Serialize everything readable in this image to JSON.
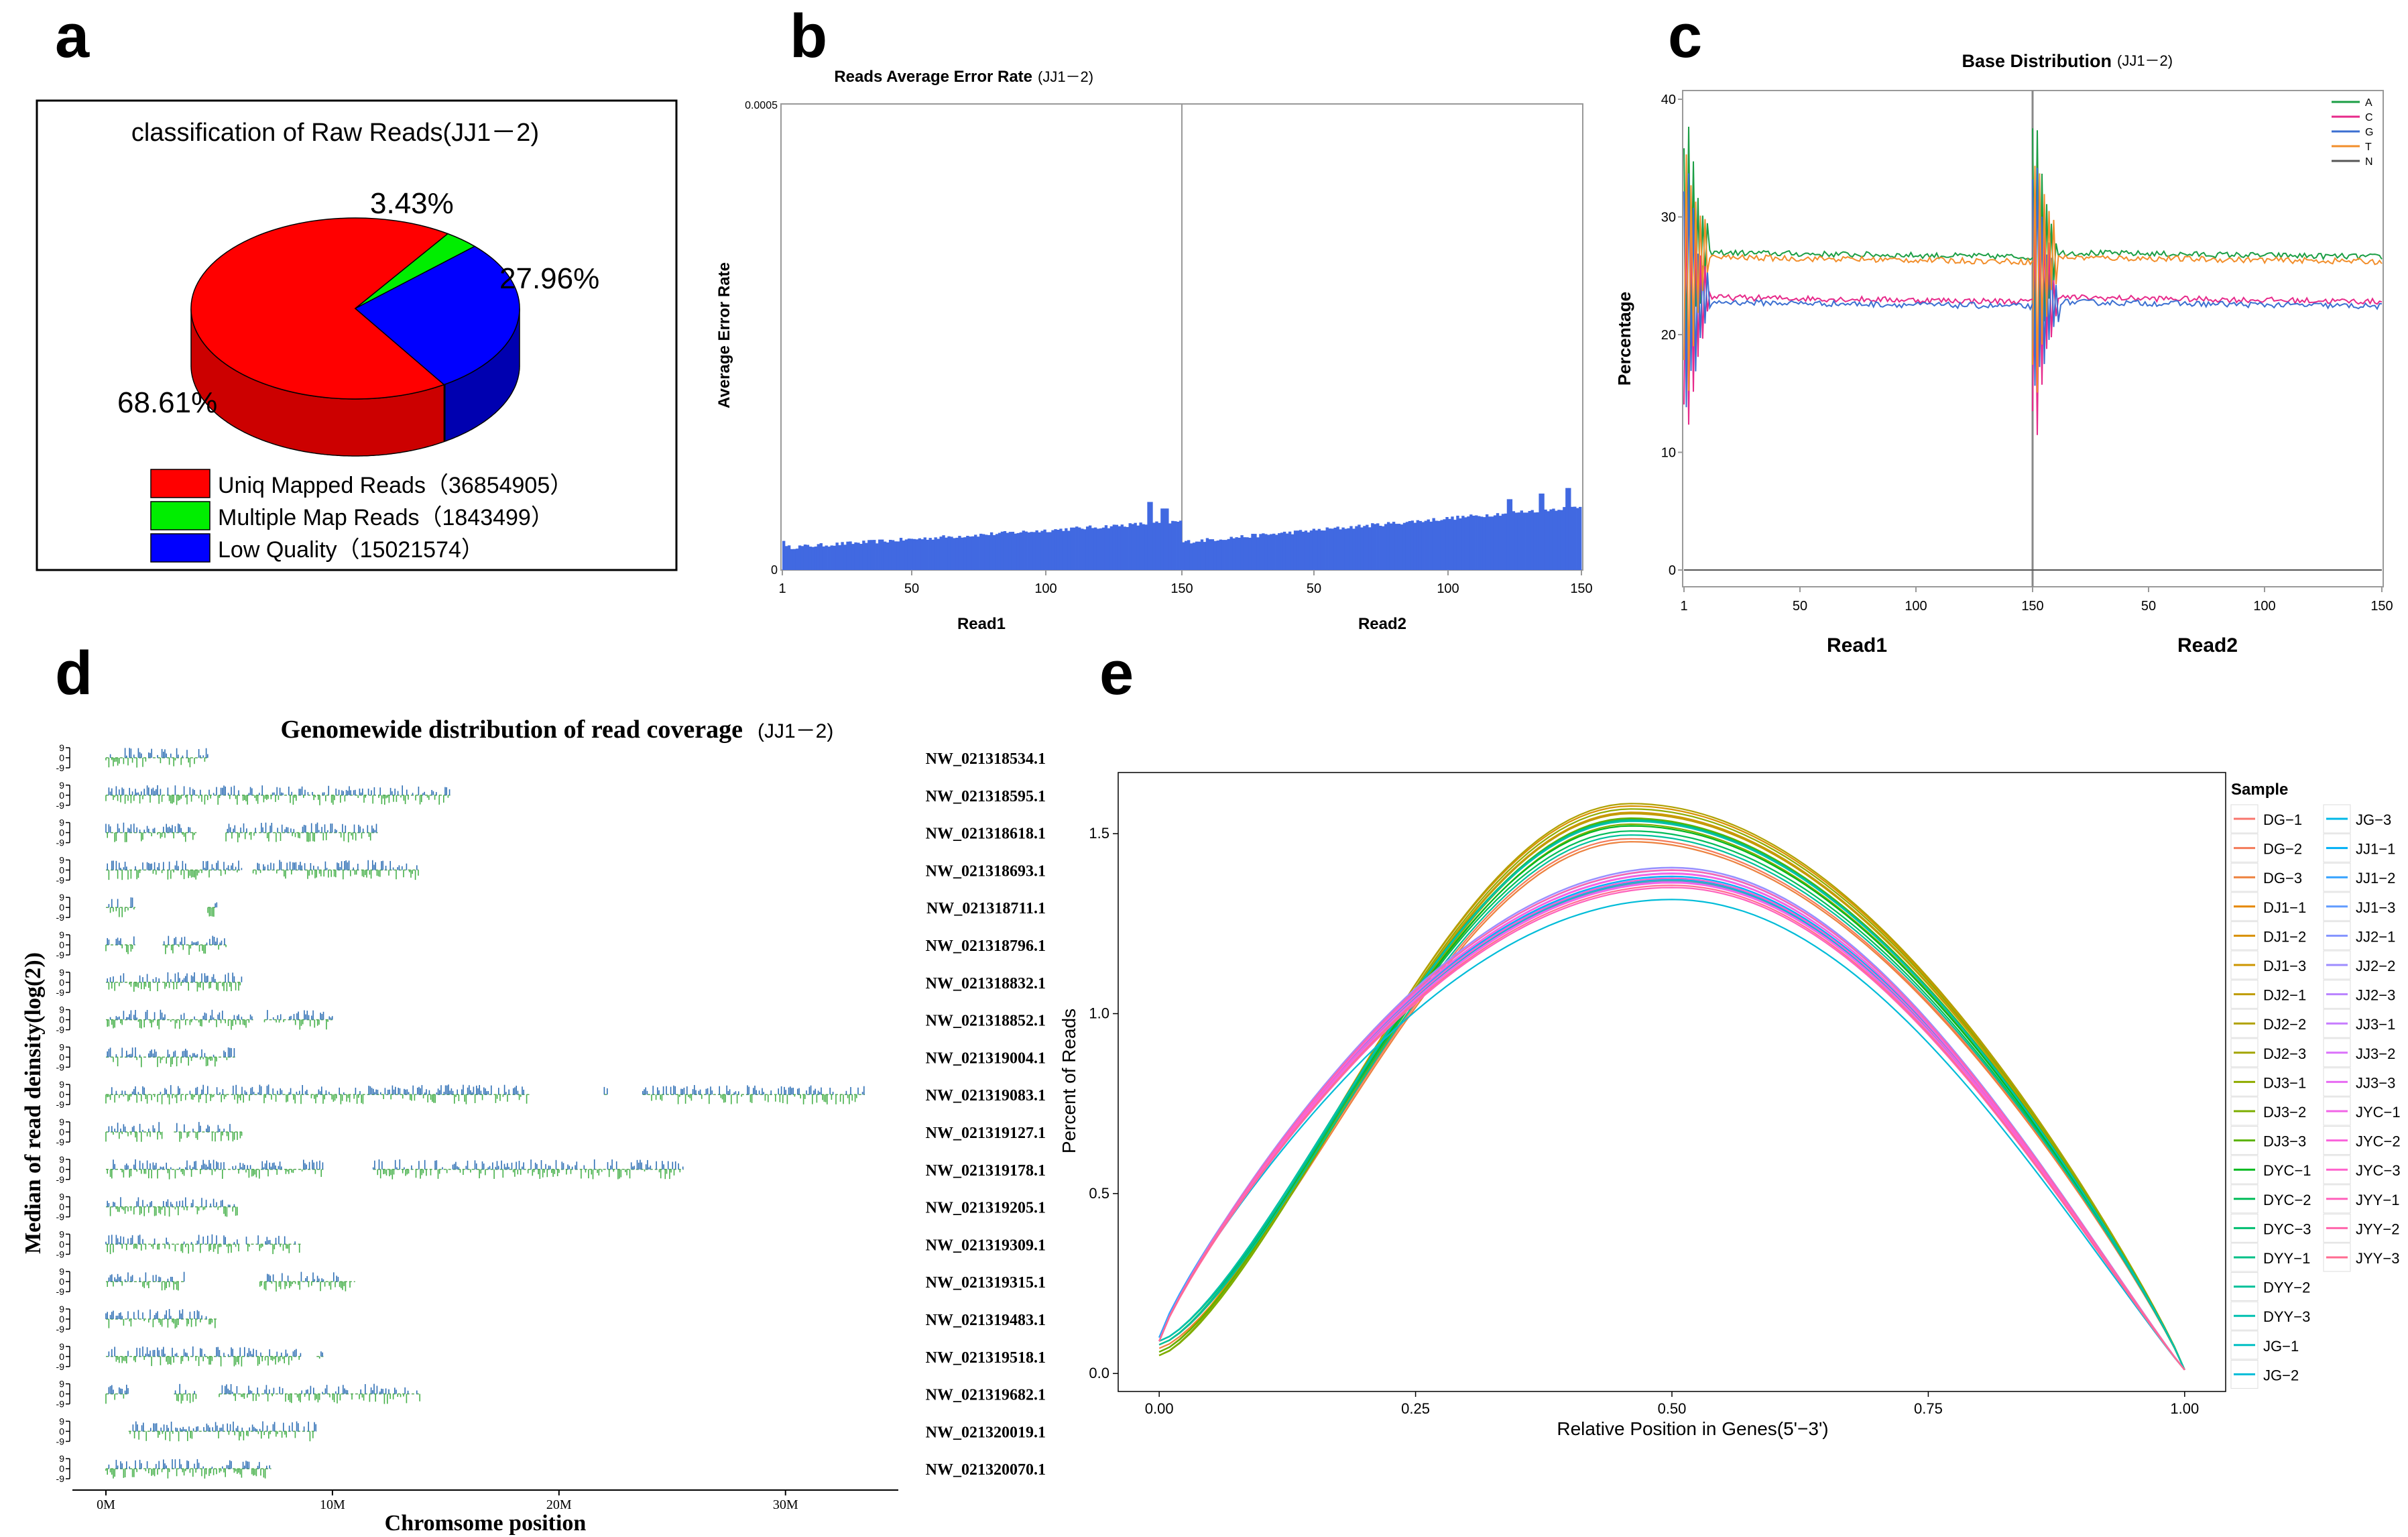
{
  "panel_labels": {
    "a": "a",
    "b": "b",
    "c": "c",
    "d": "d",
    "e": "e"
  },
  "colors": {
    "red": "#ff0000",
    "green": "#00ee00",
    "blue": "#0000ff",
    "bar": "#4169e1"
  },
  "chart_data": [
    {
      "id": "a",
      "type": "pie",
      "title": "classification of Raw Reads(JJ1－2)",
      "slices": [
        {
          "label": "Uniq Mapped Reads（36854905）",
          "value": 68.61,
          "pct_label": "68.61%",
          "color": "#ff0000"
        },
        {
          "label": "Multiple Map Reads（1843499）",
          "value": 3.43,
          "pct_label": "3.43%",
          "color": "#00ee00"
        },
        {
          "label": "Low Quality（15021574）",
          "value": 27.96,
          "pct_label": "27.96%",
          "color": "#0000ff"
        }
      ]
    },
    {
      "id": "b",
      "type": "bar",
      "title": "Reads Average Error Rate",
      "title_sample": "(JJ1－2)",
      "ylabel": "Average Error Rate",
      "ylim": [
        0,
        0.0005
      ],
      "yticks": [
        "0",
        "0.0005"
      ],
      "xticks": [
        "1",
        "50",
        "100",
        "150",
        "50",
        "100",
        "150"
      ],
      "groups": [
        "Read1",
        "Read2"
      ],
      "read1": {
        "start": 2.4e-05,
        "end": 5.2e-05,
        "spikes": [
          {
            "pos": 0.92,
            "value": 7.3e-05
          },
          {
            "pos": 0.96,
            "value": 6.6e-05
          }
        ]
      },
      "read2": {
        "start": 3e-05,
        "end": 6.8e-05,
        "spikes": [
          {
            "pos": 0.9,
            "value": 8.2e-05
          },
          {
            "pos": 0.97,
            "value": 8.8e-05
          },
          {
            "pos": 0.82,
            "value": 7.6e-05
          }
        ]
      }
    },
    {
      "id": "c",
      "type": "line",
      "title": "Base Distribution",
      "title_sample": "(JJ1－2)",
      "ylabel": "Percentage",
      "ylim": [
        0,
        40
      ],
      "yticks": [
        "0",
        "10",
        "20",
        "30",
        "40"
      ],
      "xticks": [
        "1",
        "50",
        "100",
        "150",
        "50",
        "100",
        "150"
      ],
      "groups": [
        "Read1",
        "Read2"
      ],
      "series": [
        {
          "name": "A",
          "color": "#1b9e44",
          "level": 27
        },
        {
          "name": "C",
          "color": "#e7298a",
          "level": 23.2
        },
        {
          "name": "G",
          "color": "#3b6fd1",
          "level": 22.8
        },
        {
          "name": "T",
          "color": "#f28e2b",
          "level": 26.6
        },
        {
          "name": "N",
          "color": "#555555",
          "level": 0
        }
      ]
    },
    {
      "id": "d",
      "type": "scatter",
      "title": "Genomewide distribution of read coverage",
      "title_sample": "(JJ1－2)",
      "ylabel": "Median of read deinsity(log(2))",
      "xlabel": "Chromsome position",
      "xlim": [
        0,
        34
      ],
      "xticks": [
        {
          "v": 0,
          "label": "0M"
        },
        {
          "v": 10,
          "label": "10M"
        },
        {
          "v": 20,
          "label": "20M"
        },
        {
          "v": 30,
          "label": "30M"
        }
      ],
      "track_ticks": [
        "9",
        "0",
        "-9"
      ],
      "tracks": [
        {
          "name": "NW_021318534.1",
          "segs": [
            [
              0,
              4.5
            ]
          ]
        },
        {
          "name": "NW_021318595.1",
          "segs": [
            [
              0,
              15.2
            ]
          ]
        },
        {
          "name": "NW_021318618.1",
          "segs": [
            [
              0,
              4
            ],
            [
              5.3,
              12
            ]
          ]
        },
        {
          "name": "NW_021318693.1",
          "segs": [
            [
              0,
              6
            ],
            [
              6.5,
              13.8
            ]
          ]
        },
        {
          "name": "NW_021318711.1",
          "segs": [
            [
              0,
              1.3
            ],
            [
              4.5,
              4.9
            ]
          ]
        },
        {
          "name": "NW_021318796.1",
          "segs": [
            [
              0,
              1.3
            ],
            [
              2.5,
              5.3
            ]
          ]
        },
        {
          "name": "NW_021318832.1",
          "segs": [
            [
              0,
              6
            ]
          ]
        },
        {
          "name": "NW_021318852.1",
          "segs": [
            [
              0,
              6.5
            ],
            [
              7,
              10
            ]
          ]
        },
        {
          "name": "NW_021319004.1",
          "segs": [
            [
              0,
              5.7
            ]
          ]
        },
        {
          "name": "NW_021319083.1",
          "segs": [
            [
              0,
              4.8
            ],
            [
              4.9,
              18.7
            ],
            [
              22,
              22.2
            ],
            [
              23.7,
              33.5
            ]
          ]
        },
        {
          "name": "NW_021319127.1",
          "segs": [
            [
              0,
              2.5
            ],
            [
              3,
              6
            ]
          ]
        },
        {
          "name": "NW_021319178.1",
          "segs": [
            [
              0,
              9.6
            ],
            [
              11.8,
              25.5
            ]
          ]
        },
        {
          "name": "NW_021319205.1",
          "segs": [
            [
              0,
              5.8
            ]
          ]
        },
        {
          "name": "NW_021319309.1",
          "segs": [
            [
              0,
              5.9
            ],
            [
              6.2,
              8.6
            ]
          ]
        },
        {
          "name": "NW_021319315.1",
          "segs": [
            [
              0,
              3.5
            ],
            [
              6.8,
              11
            ]
          ]
        },
        {
          "name": "NW_021319483.1",
          "segs": [
            [
              0,
              4.9
            ]
          ]
        },
        {
          "name": "NW_021319518.1",
          "segs": [
            [
              0,
              8.6
            ],
            [
              9.3,
              9.6
            ]
          ]
        },
        {
          "name": "NW_021319682.1",
          "segs": [
            [
              0,
              1
            ],
            [
              3,
              4
            ],
            [
              5,
              13.9
            ]
          ]
        },
        {
          "name": "NW_021320019.1",
          "segs": [
            [
              1,
              9.3
            ]
          ]
        },
        {
          "name": "NW_021320070.1",
          "segs": [
            [
              0,
              7.3
            ]
          ]
        }
      ]
    },
    {
      "id": "e",
      "type": "line",
      "xlabel": "Relative Position in Genes(5'−3')",
      "ylabel": "Percent of Reads",
      "xlim": [
        -0.04,
        1.04
      ],
      "ylim": [
        -0.05,
        1.67
      ],
      "xticks": [
        "0.00",
        "0.25",
        "0.50",
        "0.75",
        "1.00"
      ],
      "yticks": [
        "0.0",
        "0.5",
        "1.0",
        "1.5"
      ],
      "legend_title": "Sample",
      "series": [
        {
          "name": "DG−1",
          "color": "#f8766d",
          "start": 0.09,
          "peak": 1.38
        },
        {
          "name": "DG−2",
          "color": "#f37b59",
          "start": 0.08,
          "peak": 1.5
        },
        {
          "name": "DG−3",
          "color": "#ed813e",
          "start": 0.07,
          "peak": 1.48
        },
        {
          "name": "DJ1−1",
          "color": "#e58700",
          "start": 0.06,
          "peak": 1.54
        },
        {
          "name": "DJ1−2",
          "color": "#d89000",
          "start": 0.06,
          "peak": 1.57
        },
        {
          "name": "DJ1−3",
          "color": "#cd9600",
          "start": 0.05,
          "peak": 1.55
        },
        {
          "name": "DJ2−1",
          "color": "#bf9c00",
          "start": 0.05,
          "peak": 1.56
        },
        {
          "name": "DJ2−2",
          "color": "#b0a100",
          "start": 0.05,
          "peak": 1.58
        },
        {
          "name": "DJ2−3",
          "color": "#a3a500",
          "start": 0.05,
          "peak": 1.55
        },
        {
          "name": "DJ3−1",
          "color": "#8fab00",
          "start": 0.05,
          "peak": 1.56
        },
        {
          "name": "DJ3−2",
          "color": "#7cae00",
          "start": 0.05,
          "peak": 1.53
        },
        {
          "name": "DJ3−3",
          "color": "#5bb300",
          "start": 0.06,
          "peak": 1.55
        },
        {
          "name": "DYC−1",
          "color": "#00b81f",
          "start": 0.08,
          "peak": 1.52
        },
        {
          "name": "DYC−2",
          "color": "#00bc59",
          "start": 0.09,
          "peak": 1.5
        },
        {
          "name": "DYC−3",
          "color": "#00be70",
          "start": 0.09,
          "peak": 1.53
        },
        {
          "name": "DYY−1",
          "color": "#00c087",
          "start": 0.08,
          "peak": 1.54
        },
        {
          "name": "DYY−2",
          "color": "#00c19a",
          "start": 0.08,
          "peak": 1.51
        },
        {
          "name": "DYY−3",
          "color": "#00c0b0",
          "start": 0.09,
          "peak": 1.52
        },
        {
          "name": "JG−1",
          "color": "#00bfc4",
          "start": 0.1,
          "peak": 1.36
        },
        {
          "name": "JG−2",
          "color": "#00bcd8",
          "start": 0.1,
          "peak": 1.33
        },
        {
          "name": "JG−3",
          "color": "#00b8e7",
          "start": 0.1,
          "peak": 1.38
        },
        {
          "name": "JJ1−1",
          "color": "#00b0f6",
          "start": 0.1,
          "peak": 1.37
        },
        {
          "name": "JJ1−2",
          "color": "#35a2ff",
          "start": 0.1,
          "peak": 1.39
        },
        {
          "name": "JJ1−3",
          "color": "#619cff",
          "start": 0.09,
          "peak": 1.4
        },
        {
          "name": "JJ2−1",
          "color": "#8494ff",
          "start": 0.09,
          "peak": 1.41
        },
        {
          "name": "JJ2−2",
          "color": "#9e8cff",
          "start": 0.09,
          "peak": 1.42
        },
        {
          "name": "JJ2−3",
          "color": "#b983ff",
          "start": 0.09,
          "peak": 1.39
        },
        {
          "name": "JJ3−1",
          "color": "#c77cff",
          "start": 0.09,
          "peak": 1.37
        },
        {
          "name": "JJ3−2",
          "color": "#db72fb",
          "start": 0.09,
          "peak": 1.4
        },
        {
          "name": "JJ3−3",
          "color": "#e76bf3",
          "start": 0.09,
          "peak": 1.38
        },
        {
          "name": "JYC−1",
          "color": "#f265e7",
          "start": 0.09,
          "peak": 1.37
        },
        {
          "name": "JYC−2",
          "color": "#fa62db",
          "start": 0.09,
          "peak": 1.39
        },
        {
          "name": "JYC−3",
          "color": "#ff61cc",
          "start": 0.09,
          "peak": 1.38
        },
        {
          "name": "JYY−1",
          "color": "#ff62bc",
          "start": 0.09,
          "peak": 1.36
        },
        {
          "name": "JYY−2",
          "color": "#ff65ac",
          "start": 0.09,
          "peak": 1.39
        },
        {
          "name": "JYY−3",
          "color": "#ff6c91",
          "start": 0.09,
          "peak": 1.37
        }
      ]
    }
  ]
}
